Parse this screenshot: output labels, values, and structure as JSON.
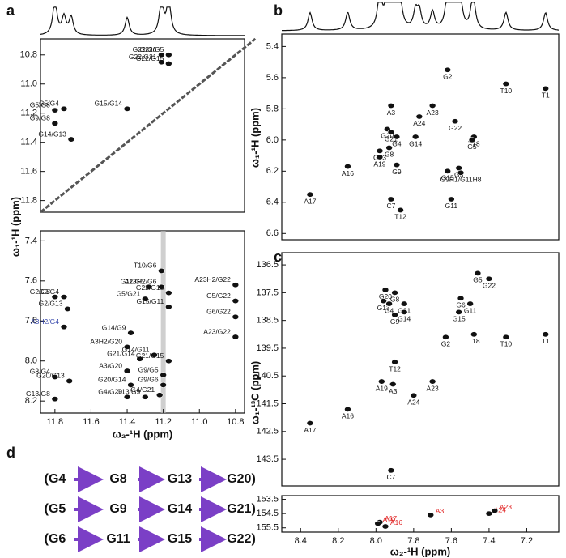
{
  "chart_data": [
    {
      "type": "scatter",
      "panel": "a",
      "ylabel": "ω₁-¹H (ppm)",
      "color": "#111111",
      "label_color": "#111111",
      "xlim": [
        11.88,
        10.75
      ],
      "ylim": [
        10.69,
        11.88
      ],
      "yticks": [
        10.8,
        {
          "value": 11,
          "label": "11.0"
        },
        11.2,
        11.4,
        11.6,
        11.8
      ],
      "labels": [
        "G22/G6",
        "G22/G5",
        "G22/G21",
        "G22/G15",
        "G5/G8",
        "G5/G4",
        "G9/G8",
        "G15/G14",
        "G14/G13"
      ],
      "x": [
        11.21,
        11.17,
        11.21,
        11.17,
        11.8,
        11.75,
        11.8,
        11.4,
        11.71
      ],
      "y": [
        10.8,
        10.8,
        10.85,
        10.86,
        11.18,
        11.17,
        11.27,
        11.17,
        11.38
      ]
    },
    {
      "type": "scatter",
      "xlabel": "ω₂-¹H (ppm)",
      "color": "#111111",
      "xlim": [
        11.88,
        10.75
      ],
      "ylim": [
        7.35,
        8.26
      ],
      "xticks": [
        11.8,
        11.6,
        11.4,
        11.2,
        {
          "value": 11,
          "label": "11.0"
        },
        10.8
      ],
      "yticks": [
        7.4,
        7.6,
        7.8,
        {
          "value": 8,
          "label": "8.0"
        },
        8.2
      ],
      "labels": [
        "T10/G6",
        "A23H2/G22",
        "A23H2/G6",
        "G11/G6",
        "G22/G15",
        "G2/G8",
        "G2/G4",
        "G5/G21",
        "G5/G22",
        "G2/G13",
        "G15/G11",
        "G6/G22",
        "A3H2/G4",
        "G14/G9",
        "A23/G22",
        "A3H2/G20",
        "G21/G14",
        "G14/G11",
        "G21/G15",
        "A3/G20",
        "G9/G5",
        "G8/G4",
        "G20/G13",
        "G20/G14",
        "G9/G6",
        "G4/G20",
        "G13/G9",
        "G4/G21",
        "G13/G8"
      ],
      "label_colors": [
        "#111111",
        "#111111",
        "#111111",
        "#111111",
        "#111111",
        "#111111",
        "#111111",
        "#111111",
        "#111111",
        "#111111",
        "#111111",
        "#111111",
        "#3344aa",
        "#111111",
        "#111111",
        "#111111",
        "#111111",
        "#111111",
        "#111111",
        "#111111",
        "#111111",
        "#111111",
        "#111111",
        "#111111",
        "#111111",
        "#111111",
        "#111111",
        "#111111",
        "#111111"
      ],
      "x": [
        11.21,
        10.8,
        11.21,
        11.28,
        11.17,
        11.8,
        11.75,
        11.3,
        10.8,
        11.73,
        11.17,
        10.8,
        11.75,
        11.38,
        10.8,
        11.4,
        11.33,
        11.25,
        11.17,
        11.4,
        11.2,
        11.8,
        11.72,
        11.38,
        11.2,
        11.4,
        11.3,
        11.22,
        11.8
      ],
      "y": [
        7.55,
        7.62,
        7.63,
        7.63,
        7.66,
        7.68,
        7.68,
        7.69,
        7.7,
        7.74,
        7.73,
        7.78,
        7.83,
        7.86,
        7.88,
        7.93,
        7.99,
        7.97,
        8.0,
        8.05,
        8.07,
        8.08,
        8.1,
        8.12,
        8.12,
        8.18,
        8.18,
        8.17,
        8.19
      ]
    },
    {
      "type": "scatter",
      "panel": "b",
      "ylabel": "ω₁-¹H (ppm)",
      "color": "#111111",
      "label_color": "#111111",
      "xlim": [
        8.5,
        7.03
      ],
      "ylim": [
        5.32,
        6.64
      ],
      "yticks": [
        5.4,
        5.6,
        5.8,
        {
          "value": 6,
          "label": "6.0"
        },
        6.2,
        6.4,
        6.6
      ],
      "labels": [
        "G2",
        "T10",
        "T1",
        "A3",
        "A23",
        "A24",
        "G22",
        "G20",
        "G21",
        "G4",
        "G14",
        "T18",
        "G5",
        "G8",
        "G13",
        "A19",
        "G9",
        "A16",
        "G6",
        "G15",
        "G9H1/G11H8",
        "C7",
        "G11",
        "A17",
        "T12"
      ],
      "x": [
        7.62,
        7.31,
        7.1,
        7.92,
        7.7,
        7.77,
        7.58,
        7.94,
        7.92,
        7.89,
        7.79,
        7.48,
        7.49,
        7.93,
        7.98,
        7.98,
        7.89,
        8.15,
        7.56,
        7.62,
        7.55,
        7.92,
        7.6,
        8.35,
        7.87
      ],
      "y": [
        5.55,
        5.64,
        5.67,
        5.78,
        5.78,
        5.85,
        5.88,
        5.93,
        5.95,
        5.98,
        5.98,
        5.98,
        6.0,
        6.05,
        6.07,
        6.11,
        6.16,
        6.17,
        6.18,
        6.2,
        6.21,
        6.38,
        6.38,
        6.35,
        6.45
      ]
    },
    {
      "type": "scatter",
      "panel": "c",
      "ylabel": "ω₁-¹³C (ppm)",
      "color": "#111111",
      "label_color": "#111111",
      "xlim": [
        8.5,
        7.03
      ],
      "ylim": [
        136.06,
        144.46
      ],
      "yticks": [
        136.5,
        137.5,
        138.5,
        139.5,
        140.5,
        141.5,
        142.5,
        143.5
      ],
      "labels": [
        "G5",
        "G22",
        "G20",
        "G8",
        "G6",
        "G13",
        "G4",
        "G21",
        "G11",
        "G15",
        "G9",
        "G14",
        "G2",
        "T18",
        "T10",
        "T1",
        "T12",
        "A19",
        "A3",
        "A23",
        "A24",
        "A16",
        "A17",
        "C7"
      ],
      "x": [
        7.46,
        7.4,
        7.95,
        7.9,
        7.55,
        7.96,
        7.93,
        7.85,
        7.5,
        7.56,
        7.9,
        7.85,
        7.63,
        7.48,
        7.31,
        7.1,
        7.9,
        7.97,
        7.91,
        7.7,
        7.8,
        8.15,
        8.35,
        7.92
      ],
      "y": [
        136.8,
        137.0,
        137.4,
        137.5,
        137.7,
        137.8,
        137.9,
        137.9,
        137.9,
        138.2,
        138.3,
        138.2,
        139.1,
        139.0,
        139.1,
        139.0,
        140.0,
        140.7,
        140.8,
        140.7,
        141.2,
        141.7,
        142.2,
        143.9
      ]
    },
    {
      "type": "scatter",
      "xlabel": "ω₂-¹H (ppm)",
      "color": "#111111",
      "label_color": "#e02020",
      "xlim": [
        8.5,
        7.03
      ],
      "ylim": [
        153.24,
        155.8
      ],
      "xticks": [
        8.4,
        8.2,
        {
          "value": 8,
          "label": "8.0"
        },
        7.8,
        7.6,
        7.4,
        7.2
      ],
      "yticks": [
        153.5,
        154.5,
        155.5
      ],
      "labels": [
        "A17",
        "A19",
        "A16",
        "A3",
        "A24",
        "A23"
      ],
      "x": [
        7.98,
        7.99,
        7.95,
        7.71,
        7.4,
        7.37
      ],
      "y": [
        155.1,
        155.2,
        155.4,
        154.6,
        154.5,
        154.3
      ]
    }
  ],
  "panel_d": {
    "label": "d",
    "rows": [
      [
        "(G4",
        "G8",
        "G13",
        "G20)"
      ],
      [
        "(G5",
        "G9",
        "G14",
        "G21)"
      ],
      [
        "(G6",
        "G11",
        "G15",
        "G22)"
      ]
    ]
  }
}
